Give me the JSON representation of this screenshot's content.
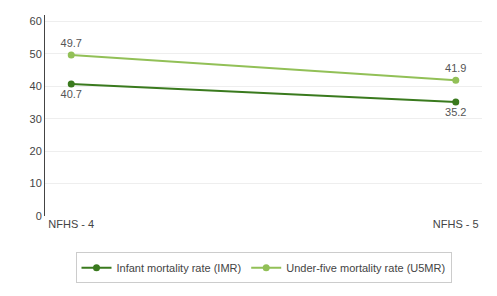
{
  "chart_data": {
    "type": "line",
    "categories": [
      "NFHS - 4",
      "NFHS - 5"
    ],
    "series": [
      {
        "name": "Infant mortality rate (IMR)",
        "color": "#3a7a1e",
        "marker": "circle",
        "values": [
          40.7,
          35.2
        ]
      },
      {
        "name": "Under-five mortality rate (U5MR)",
        "color": "#92c057",
        "marker": "circle",
        "values": [
          49.7,
          41.9
        ]
      }
    ],
    "ylim": [
      0,
      62
    ],
    "yticks": [
      0,
      10,
      20,
      30,
      40,
      50,
      60
    ],
    "grid": true,
    "legend": "bottom",
    "data_labels": true
  }
}
